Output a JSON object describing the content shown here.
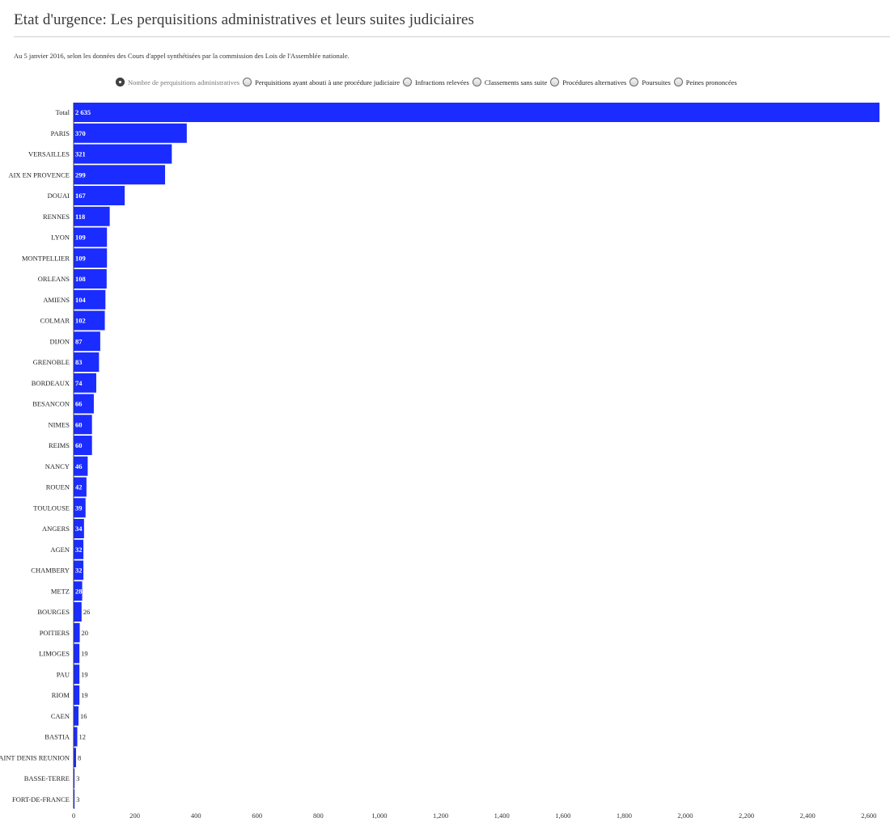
{
  "title": "Etat d'urgence: Les perquisitions administratives et leurs suites judiciaires",
  "subtitle": "Au 5 janvier 2016, selon les données des Cours d'appel synthétisées par la commission des Lois de l'Assemblée nationale.",
  "options": [
    {
      "label": "Nombre de perquisitions administratives",
      "selected": true
    },
    {
      "label": "Perquisitions ayant abouti à une procédure judiciaire",
      "selected": false
    },
    {
      "label": "Infractions relevées",
      "selected": false
    },
    {
      "label": "Classements sans suite",
      "selected": false
    },
    {
      "label": "Procédures alternatives",
      "selected": false
    },
    {
      "label": "Poursuites",
      "selected": false
    },
    {
      "label": "Peines prononcées",
      "selected": false
    }
  ],
  "colors": {
    "bar": "#1a2cff",
    "label_inside": "#ffffff",
    "label_outside": "#222222",
    "axis": "#333333"
  },
  "chart_data": {
    "type": "bar",
    "orientation": "horizontal",
    "categories": [
      "Total",
      "PARIS",
      "VERSAILLES",
      "AIX EN PROVENCE",
      "DOUAI",
      "RENNES",
      "LYON",
      "MONTPELLIER",
      "ORLEANS",
      "AMIENS",
      "COLMAR",
      "DIJON",
      "GRENOBLE",
      "BORDEAUX",
      "BESANCON",
      "NIMES",
      "REIMS",
      "NANCY",
      "ROUEN",
      "TOULOUSE",
      "ANGERS",
      "AGEN",
      "CHAMBERY",
      "METZ",
      "BOURGES",
      "POITIERS",
      "LIMOGES",
      "PAU",
      "RIOM",
      "CAEN",
      "BASTIA",
      "SAINT DENIS REUNION",
      "BASSE-TERRE",
      "FORT-DE-FRANCE"
    ],
    "values": [
      2635,
      370,
      321,
      299,
      167,
      118,
      109,
      109,
      108,
      104,
      102,
      87,
      83,
      74,
      66,
      60,
      60,
      46,
      42,
      39,
      34,
      32,
      32,
      28,
      26,
      20,
      19,
      19,
      19,
      16,
      12,
      8,
      3,
      3
    ],
    "value_labels": [
      "2 635",
      "370",
      "321",
      "299",
      "167",
      "118",
      "109",
      "109",
      "108",
      "104",
      "102",
      "87",
      "83",
      "74",
      "66",
      "60",
      "60",
      "46",
      "42",
      "39",
      "34",
      "32",
      "32",
      "28",
      "26",
      "20",
      "19",
      "19",
      "19",
      "16",
      "12",
      "8",
      "3",
      "3"
    ],
    "xlim": [
      0,
      2635
    ],
    "xticks": [
      0,
      200,
      400,
      600,
      800,
      1000,
      1200,
      1400,
      1600,
      1800,
      2000,
      2200,
      2400,
      2600
    ],
    "xtick_labels": [
      "0",
      "200",
      "400",
      "600",
      "800",
      "1,000",
      "1,200",
      "1,400",
      "1,600",
      "1,800",
      "2,000",
      "2,200",
      "2,400",
      "2,600"
    ],
    "grid": false,
    "legend": "none"
  }
}
